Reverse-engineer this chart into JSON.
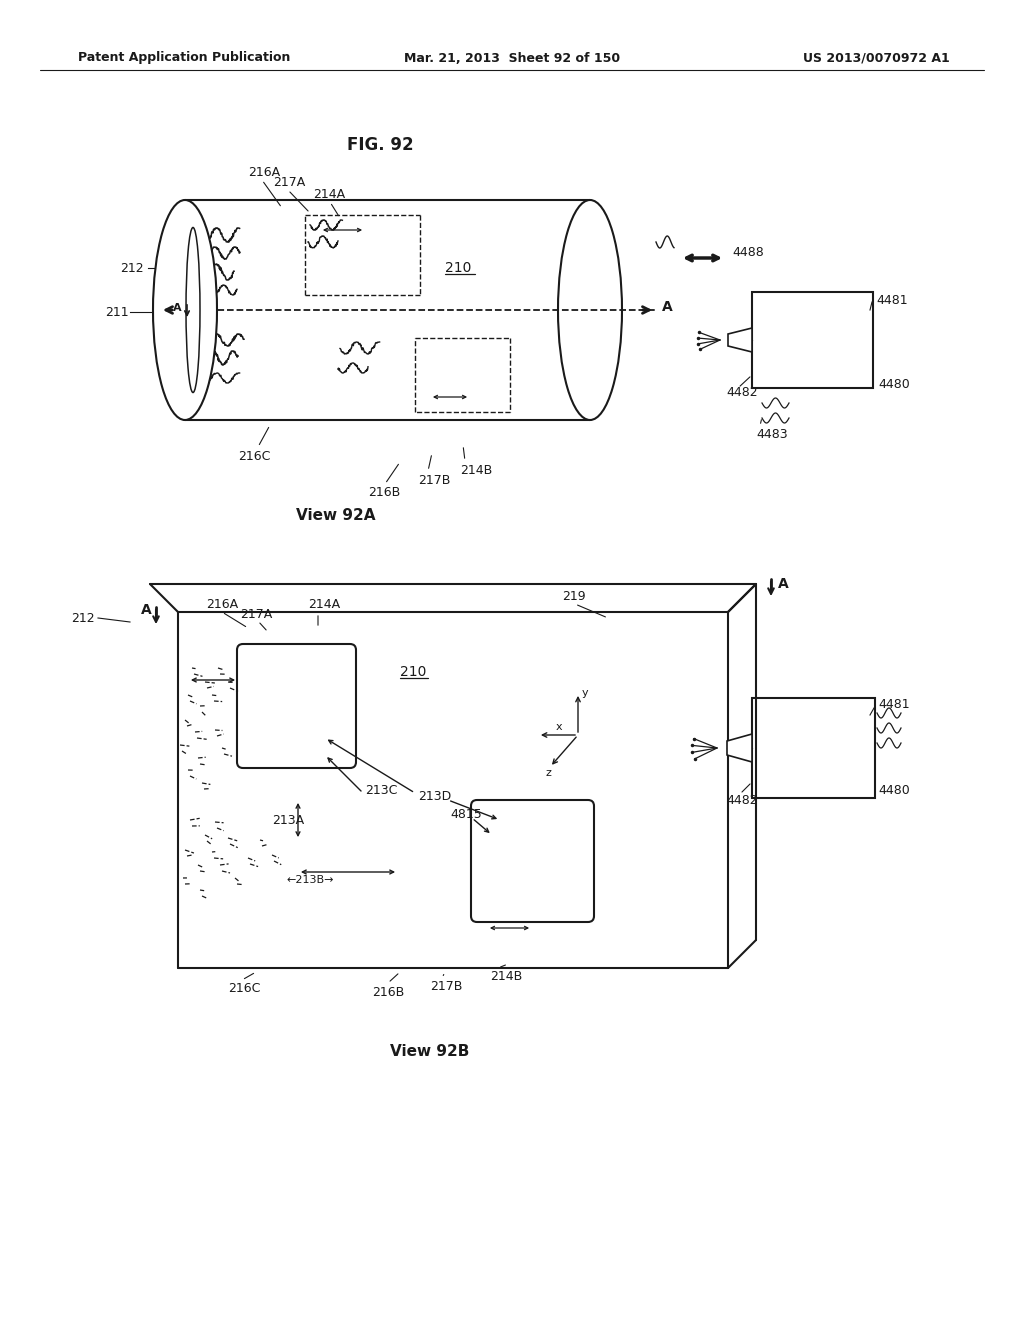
{
  "title": "FIG. 92",
  "header_left": "Patent Application Publication",
  "header_center": "Mar. 21, 2013  Sheet 92 of 150",
  "header_right": "US 2013/0070972 A1",
  "view_92a_label": "View 92A",
  "view_92b_label": "View 92B",
  "bg_color": "#ffffff",
  "line_color": "#1a1a1a"
}
